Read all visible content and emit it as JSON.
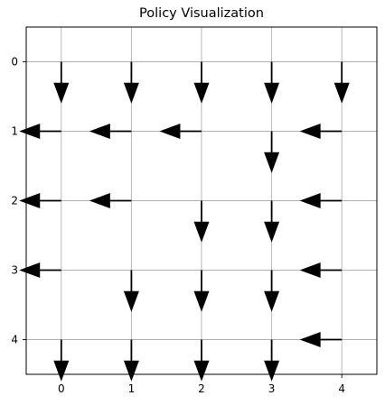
{
  "chart_data": {
    "type": "quiver",
    "title": "Policy Visualization",
    "xlabel": "",
    "ylabel": "",
    "xlim": [
      -0.5,
      4.5
    ],
    "ylim": [
      4.5,
      -0.5
    ],
    "xticks": [
      0,
      1,
      2,
      3,
      4
    ],
    "yticks": [
      0,
      1,
      2,
      3,
      4
    ],
    "grid": true,
    "arrow_color": "#000000",
    "grid_color": "#b0b0b0",
    "policy": [
      [
        "down",
        "down",
        "down",
        "down",
        "down"
      ],
      [
        "left",
        "left",
        "left",
        "down",
        "left"
      ],
      [
        "left",
        "left",
        "down",
        "down",
        "left"
      ],
      [
        "left",
        "down",
        "down",
        "down",
        "left"
      ],
      [
        "down",
        "down",
        "down",
        "down",
        "left"
      ]
    ]
  }
}
